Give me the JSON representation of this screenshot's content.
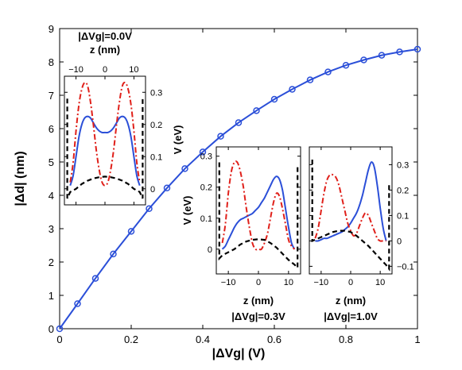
{
  "chart_data": [
    {
      "type": "line",
      "xlabel": "|ΔVg| (V)",
      "ylabel": "|Δd| (nm)",
      "xlim": [
        0,
        1
      ],
      "ylim": [
        0,
        9
      ],
      "xticks": [
        "0",
        "0.2",
        "0.4",
        "0.6",
        "0.8",
        "1"
      ],
      "yticks": [
        "0",
        "1",
        "2",
        "3",
        "4",
        "5",
        "6",
        "7",
        "8",
        "9"
      ],
      "series": [
        {
          "color": "#2b4fd8",
          "marker": "circle",
          "x": [
            0,
            0.05,
            0.1,
            0.15,
            0.2,
            0.25,
            0.3,
            0.35,
            0.4,
            0.45,
            0.5,
            0.55,
            0.6,
            0.65,
            0.7,
            0.75,
            0.8,
            0.85,
            0.9,
            0.95,
            1.0
          ],
          "y": [
            0,
            0.75,
            1.51,
            2.24,
            2.92,
            3.6,
            4.22,
            4.8,
            5.3,
            5.77,
            6.18,
            6.54,
            6.88,
            7.18,
            7.46,
            7.7,
            7.9,
            8.06,
            8.2,
            8.3,
            8.38
          ]
        }
      ]
    },
    {
      "type": "line",
      "title": "|ΔVg|=0.0V",
      "xlabel": "z (nm)",
      "ylabel": "V (eV)",
      "xticks": [
        "−10",
        "0",
        "10"
      ],
      "yticks": [
        "0.3",
        "0.2",
        "0.1",
        "0"
      ],
      "xlim": [
        -14,
        14
      ],
      "ylim": [
        -0.05,
        0.35
      ],
      "series": [
        {
          "style": "solid",
          "color": "#2b4fd8",
          "x": [
            -12,
            -11,
            -10,
            -9,
            -8,
            -7,
            -6,
            -5,
            -4,
            -3,
            -2,
            -1,
            0,
            1,
            2,
            3,
            4,
            5,
            6,
            7,
            8,
            9,
            10,
            11,
            12
          ],
          "y": [
            0.01,
            0.04,
            0.1,
            0.16,
            0.2,
            0.22,
            0.225,
            0.22,
            0.205,
            0.19,
            0.18,
            0.175,
            0.175,
            0.175,
            0.18,
            0.19,
            0.205,
            0.22,
            0.225,
            0.22,
            0.2,
            0.16,
            0.1,
            0.04,
            0.01
          ]
        },
        {
          "style": "dashdot",
          "color": "#e0201a",
          "x": [
            -12,
            -11,
            -10,
            -9,
            -8,
            -7,
            -6,
            -5,
            -4,
            -3,
            -2,
            -1,
            0,
            1,
            2,
            3,
            4,
            5,
            6,
            7,
            8,
            9,
            10,
            11,
            12
          ],
          "y": [
            0.02,
            0.08,
            0.18,
            0.26,
            0.31,
            0.33,
            0.32,
            0.27,
            0.2,
            0.12,
            0.06,
            0.02,
            0.01,
            0.02,
            0.06,
            0.12,
            0.2,
            0.27,
            0.32,
            0.33,
            0.31,
            0.26,
            0.18,
            0.08,
            0.02
          ]
        },
        {
          "style": "dashed",
          "color": "#000000",
          "x": [
            -13,
            -13,
            -12,
            -10,
            -8,
            -6,
            -4,
            -2,
            0,
            2,
            4,
            6,
            8,
            10,
            12,
            13,
            13
          ],
          "y": [
            0.28,
            -0.03,
            -0.01,
            0.0,
            0.015,
            0.025,
            0.032,
            0.036,
            0.038,
            0.036,
            0.032,
            0.025,
            0.015,
            0.0,
            -0.01,
            -0.03,
            0.28
          ]
        }
      ]
    },
    {
      "type": "line",
      "title": "|ΔVg|=0.3V",
      "xlabel": "z (nm)",
      "ylabel": "V (eV)",
      "xticks": [
        "−10",
        "0",
        "10"
      ],
      "yticks": [
        "0.3",
        "0.2",
        "0.1",
        "0"
      ],
      "xlim": [
        -14,
        14
      ],
      "ylim": [
        -0.08,
        0.33
      ],
      "series": [
        {
          "style": "solid",
          "color": "#2b4fd8",
          "x": [
            -12,
            -11,
            -10,
            -9,
            -8,
            -7,
            -6,
            -5,
            -4,
            -3,
            -2,
            -1,
            0,
            1,
            2,
            3,
            4,
            5,
            6,
            7,
            8,
            9,
            10,
            11,
            12
          ],
          "y": [
            0.0,
            0.01,
            0.03,
            0.05,
            0.07,
            0.085,
            0.095,
            0.1,
            0.105,
            0.11,
            0.115,
            0.125,
            0.135,
            0.15,
            0.165,
            0.185,
            0.205,
            0.225,
            0.235,
            0.225,
            0.19,
            0.13,
            0.07,
            0.02,
            0.0
          ]
        },
        {
          "style": "dashdot",
          "color": "#e0201a",
          "x": [
            -12,
            -11,
            -10,
            -9,
            -8,
            -7,
            -6,
            -5,
            -4,
            -3,
            -2,
            -1,
            0,
            1,
            2,
            3,
            4,
            5,
            6,
            7,
            8,
            9,
            10,
            11,
            12
          ],
          "y": [
            0.02,
            0.08,
            0.18,
            0.25,
            0.28,
            0.28,
            0.25,
            0.2,
            0.13,
            0.07,
            0.02,
            0.0,
            0.0,
            0.0,
            0.02,
            0.05,
            0.1,
            0.15,
            0.18,
            0.17,
            0.13,
            0.08,
            0.03,
            0.01,
            0.0
          ]
        },
        {
          "style": "dashed",
          "color": "#000000",
          "x": [
            -13,
            -13,
            -12,
            -10,
            -8,
            -6,
            -4,
            -2,
            0,
            2,
            4,
            6,
            8,
            10,
            12,
            13,
            13
          ],
          "y": [
            0.28,
            -0.03,
            -0.02,
            -0.01,
            0.0,
            0.015,
            0.025,
            0.03,
            0.032,
            0.03,
            0.02,
            0.005,
            -0.015,
            -0.035,
            -0.05,
            -0.06,
            0.27
          ]
        }
      ]
    },
    {
      "type": "line",
      "title": "|ΔVg|=1.0V",
      "xlabel": "z (nm)",
      "xticks": [
        "−10",
        "0",
        "10"
      ],
      "yticks": [
        "0.3",
        "0.2",
        "0.1",
        "0",
        "−0.1"
      ],
      "xlim": [
        -14,
        14
      ],
      "ylim": [
        -0.13,
        0.37
      ],
      "series": [
        {
          "style": "solid",
          "color": "#2b4fd8",
          "x": [
            -12,
            -11,
            -10,
            -9,
            -8,
            -7,
            -6,
            -5,
            -4,
            -3,
            -2,
            -1,
            0,
            1,
            2,
            3,
            4,
            5,
            6,
            7,
            8,
            9,
            10,
            11,
            12
          ],
          "y": [
            0.0,
            0.0,
            0.005,
            0.01,
            0.01,
            0.015,
            0.02,
            0.025,
            0.03,
            0.035,
            0.045,
            0.055,
            0.07,
            0.09,
            0.11,
            0.14,
            0.18,
            0.23,
            0.28,
            0.31,
            0.29,
            0.22,
            0.13,
            0.05,
            0.0
          ]
        },
        {
          "style": "dashdot",
          "color": "#e0201a",
          "x": [
            -12,
            -11,
            -10,
            -9,
            -8,
            -7,
            -6,
            -5,
            -4,
            -3,
            -2,
            -1,
            0,
            1,
            2,
            3,
            4,
            5,
            6,
            7,
            8,
            9,
            10,
            11,
            12
          ],
          "y": [
            0.01,
            0.05,
            0.12,
            0.19,
            0.24,
            0.26,
            0.26,
            0.25,
            0.22,
            0.17,
            0.12,
            0.07,
            0.04,
            0.02,
            0.03,
            0.06,
            0.09,
            0.11,
            0.1,
            0.07,
            0.04,
            0.01,
            0.0,
            0.0,
            0.0
          ]
        },
        {
          "style": "dashed",
          "color": "#000000",
          "x": [
            -13,
            -13,
            -12,
            -10,
            -8,
            -6,
            -4,
            -2,
            0,
            2,
            4,
            6,
            8,
            10,
            12,
            13,
            13
          ],
          "y": [
            0.32,
            0.0,
            0.005,
            0.015,
            0.025,
            0.035,
            0.04,
            0.04,
            0.035,
            0.02,
            0.0,
            -0.02,
            -0.045,
            -0.07,
            -0.095,
            -0.11,
            0.22
          ]
        }
      ]
    }
  ]
}
